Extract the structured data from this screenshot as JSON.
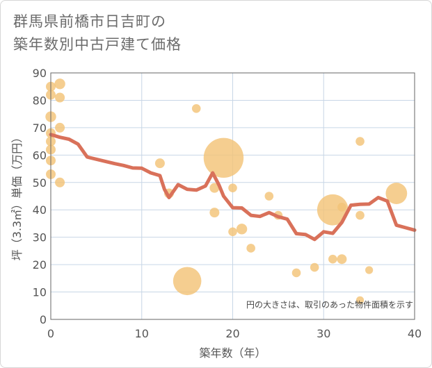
{
  "chart_data": {
    "type": "scatter+line",
    "title_lines": [
      "群馬県前橋市日吉町の",
      "築年数別中古戸建て価格"
    ],
    "xlabel": "築年数（年）",
    "ylabel": "坪（3.3㎡）単価（万円）",
    "xlim": [
      0,
      40
    ],
    "ylim": [
      0,
      90
    ],
    "x_ticks": [
      0,
      10,
      20,
      30,
      40
    ],
    "y_ticks": [
      0,
      10,
      20,
      30,
      40,
      50,
      60,
      70,
      80,
      90
    ],
    "x_tick_labels": [
      "0",
      "10",
      "20",
      "30",
      "40"
    ],
    "y_tick_labels": [
      "0",
      "10",
      "20",
      "30",
      "40",
      "50",
      "60",
      "70",
      "80",
      "90"
    ],
    "grid": true,
    "note": "円の大きさは、取引のあった物件面積を示す",
    "scatter_color": "#f3c378",
    "line_color": "#d9715a",
    "scatter": [
      {
        "x": 0,
        "y": 85,
        "size": 1
      },
      {
        "x": 0,
        "y": 82,
        "size": 1
      },
      {
        "x": 0,
        "y": 74,
        "size": 1.1
      },
      {
        "x": 0,
        "y": 68,
        "size": 1
      },
      {
        "x": 0,
        "y": 65,
        "size": 1
      },
      {
        "x": 0,
        "y": 62,
        "size": 1
      },
      {
        "x": 0,
        "y": 58,
        "size": 1
      },
      {
        "x": 0,
        "y": 53,
        "size": 1
      },
      {
        "x": 1,
        "y": 86,
        "size": 1.1
      },
      {
        "x": 1,
        "y": 81,
        "size": 1
      },
      {
        "x": 1,
        "y": 70,
        "size": 1
      },
      {
        "x": 1,
        "y": 50,
        "size": 1
      },
      {
        "x": 12,
        "y": 57,
        "size": 1
      },
      {
        "x": 13,
        "y": 46,
        "size": 1
      },
      {
        "x": 15,
        "y": 14,
        "size": 2.9
      },
      {
        "x": 16,
        "y": 77,
        "size": 0.9
      },
      {
        "x": 18,
        "y": 48,
        "size": 1
      },
      {
        "x": 18,
        "y": 39,
        "size": 1
      },
      {
        "x": 19,
        "y": 59,
        "size": 4.1
      },
      {
        "x": 20,
        "y": 48,
        "size": 0.9
      },
      {
        "x": 20,
        "y": 32,
        "size": 0.9
      },
      {
        "x": 21,
        "y": 33,
        "size": 1.1
      },
      {
        "x": 22,
        "y": 26,
        "size": 0.9
      },
      {
        "x": 24,
        "y": 45,
        "size": 0.9
      },
      {
        "x": 25,
        "y": 38,
        "size": 0.9
      },
      {
        "x": 27,
        "y": 17,
        "size": 0.9
      },
      {
        "x": 29,
        "y": 19,
        "size": 0.9
      },
      {
        "x": 31,
        "y": 40,
        "size": 3.2
      },
      {
        "x": 31,
        "y": 22,
        "size": 0.9
      },
      {
        "x": 32,
        "y": 22,
        "size": 1
      },
      {
        "x": 32,
        "y": 41,
        "size": 0.9
      },
      {
        "x": 34,
        "y": 65,
        "size": 0.9
      },
      {
        "x": 34,
        "y": 38,
        "size": 0.9
      },
      {
        "x": 34,
        "y": 7,
        "size": 0.8
      },
      {
        "x": 35,
        "y": 18,
        "size": 0.8
      },
      {
        "x": 38,
        "y": 46,
        "size": 2.2
      }
    ],
    "trend": {
      "x": [
        0,
        1,
        2,
        3,
        4,
        5,
        6,
        7,
        8,
        9,
        10,
        11,
        12,
        12.5,
        13,
        14,
        15,
        16,
        17,
        17.8,
        18.5,
        19,
        20,
        21,
        22,
        23,
        24,
        25,
        26,
        27,
        28,
        29,
        30,
        31,
        32,
        33,
        34,
        35,
        36,
        37,
        38,
        39,
        40
      ],
      "y": [
        67.5,
        66.5,
        65.8,
        64,
        59.3,
        58.5,
        57.7,
        56.9,
        56.2,
        55.3,
        55.2,
        53.5,
        52.5,
        47.5,
        44.5,
        49.2,
        47.5,
        47.2,
        48.7,
        53.5,
        49,
        45,
        40.8,
        40.7,
        38,
        37.6,
        39,
        37.5,
        36.6,
        31.3,
        31,
        29.2,
        32,
        31.4,
        35.4,
        41.7,
        42,
        42.1,
        44.5,
        43.2,
        34.4,
        33.5,
        32.6
      ]
    }
  }
}
